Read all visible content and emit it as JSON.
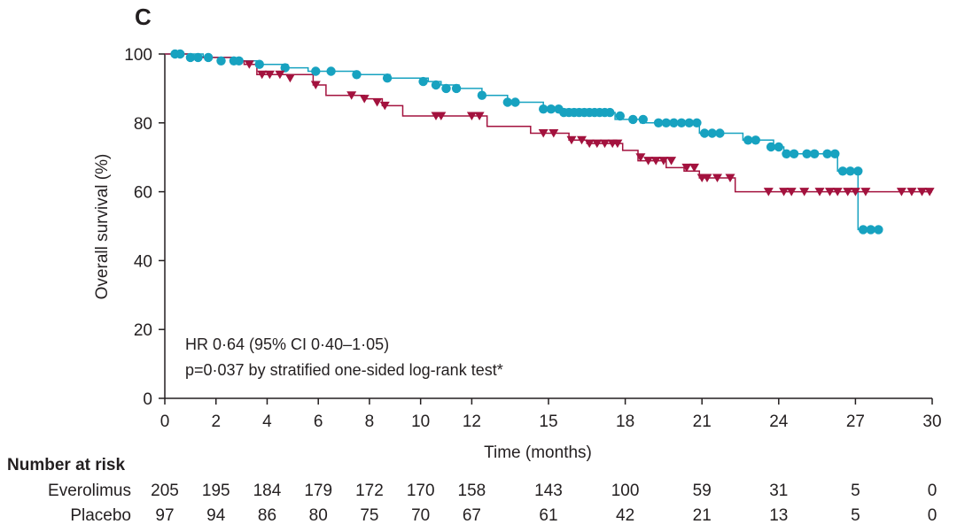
{
  "chart_data": {
    "type": "line",
    "panel_label": "C",
    "xlabel": "Time (months)",
    "ylabel": "Overall survival (%)",
    "xlim": [
      0,
      30
    ],
    "ylim": [
      0,
      100
    ],
    "x_ticks": [
      0,
      2,
      4,
      6,
      8,
      10,
      12,
      15,
      18,
      21,
      24,
      27,
      30
    ],
    "y_ticks": [
      0,
      20,
      40,
      60,
      80,
      100
    ],
    "annotations": [
      "HR 0·64 (95% CI 0·40–1·05)",
      "p=0·037 by stratified one-sided log-rank test*"
    ],
    "series": [
      {
        "name": "Everolimus",
        "color": "#17a2c0",
        "marker": "circle",
        "steps": [
          [
            0,
            100
          ],
          [
            1.5,
            99
          ],
          [
            2.6,
            98
          ],
          [
            3.6,
            97
          ],
          [
            4.8,
            96
          ],
          [
            5.6,
            95
          ],
          [
            7.5,
            94
          ],
          [
            8.8,
            93
          ],
          [
            10.3,
            92
          ],
          [
            10.8,
            91
          ],
          [
            11.5,
            90
          ],
          [
            12.4,
            88
          ],
          [
            13.4,
            86
          ],
          [
            14.8,
            84
          ],
          [
            16.6,
            83
          ],
          [
            17.6,
            81
          ],
          [
            18.6,
            80
          ],
          [
            20.9,
            77
          ],
          [
            22.6,
            75
          ],
          [
            23.8,
            73
          ],
          [
            24.2,
            71
          ],
          [
            25.8,
            71
          ],
          [
            26.3,
            66
          ],
          [
            27.1,
            49
          ],
          [
            27.8,
            49
          ]
        ],
        "censored": [
          [
            0.4,
            100
          ],
          [
            0.6,
            100
          ],
          [
            1.0,
            99
          ],
          [
            1.3,
            99
          ],
          [
            1.7,
            99
          ],
          [
            2.2,
            98
          ],
          [
            2.7,
            98
          ],
          [
            2.9,
            98
          ],
          [
            3.7,
            97
          ],
          [
            4.7,
            96
          ],
          [
            5.9,
            95
          ],
          [
            6.5,
            95
          ],
          [
            7.5,
            94
          ],
          [
            8.7,
            93
          ],
          [
            10.1,
            92
          ],
          [
            10.6,
            91
          ],
          [
            11.0,
            90
          ],
          [
            11.4,
            90
          ],
          [
            12.4,
            88
          ],
          [
            13.4,
            86
          ],
          [
            13.7,
            86
          ],
          [
            14.8,
            84
          ],
          [
            15.1,
            84
          ],
          [
            15.4,
            84
          ],
          [
            15.6,
            83
          ],
          [
            15.8,
            83
          ],
          [
            16.0,
            83
          ],
          [
            16.2,
            83
          ],
          [
            16.4,
            83
          ],
          [
            16.6,
            83
          ],
          [
            16.8,
            83
          ],
          [
            17.0,
            83
          ],
          [
            17.2,
            83
          ],
          [
            17.4,
            83
          ],
          [
            17.8,
            82
          ],
          [
            18.3,
            81
          ],
          [
            18.7,
            81
          ],
          [
            19.3,
            80
          ],
          [
            19.6,
            80
          ],
          [
            19.9,
            80
          ],
          [
            20.2,
            80
          ],
          [
            20.5,
            80
          ],
          [
            20.8,
            80
          ],
          [
            21.1,
            77
          ],
          [
            21.4,
            77
          ],
          [
            21.7,
            77
          ],
          [
            22.8,
            75
          ],
          [
            23.1,
            75
          ],
          [
            23.7,
            73
          ],
          [
            24.0,
            73
          ],
          [
            24.3,
            71
          ],
          [
            24.6,
            71
          ],
          [
            25.1,
            71
          ],
          [
            25.4,
            71
          ],
          [
            25.9,
            71
          ],
          [
            26.2,
            71
          ],
          [
            26.5,
            66
          ],
          [
            26.8,
            66
          ],
          [
            27.1,
            66
          ],
          [
            27.3,
            49
          ],
          [
            27.6,
            49
          ],
          [
            27.9,
            49
          ]
        ]
      },
      {
        "name": "Placebo",
        "color": "#a3123e",
        "marker": "triangle-down",
        "steps": [
          [
            0,
            100
          ],
          [
            1.0,
            99
          ],
          [
            2.6,
            98
          ],
          [
            3.1,
            97
          ],
          [
            3.6,
            94
          ],
          [
            4.5,
            94
          ],
          [
            5.8,
            91
          ],
          [
            6.3,
            88
          ],
          [
            7.8,
            87
          ],
          [
            8.5,
            85
          ],
          [
            9.3,
            82
          ],
          [
            12.6,
            79
          ],
          [
            14.3,
            77
          ],
          [
            15.8,
            75
          ],
          [
            16.5,
            74
          ],
          [
            17.9,
            72
          ],
          [
            18.5,
            69
          ],
          [
            19.6,
            67
          ],
          [
            20.3,
            66
          ],
          [
            20.9,
            64
          ],
          [
            22.3,
            60
          ],
          [
            30,
            60
          ]
        ],
        "censored": [
          [
            3.3,
            97
          ],
          [
            3.8,
            94
          ],
          [
            4.1,
            94
          ],
          [
            4.5,
            94
          ],
          [
            4.9,
            93
          ],
          [
            5.9,
            91
          ],
          [
            7.3,
            88
          ],
          [
            7.8,
            87
          ],
          [
            8.3,
            86
          ],
          [
            8.6,
            85
          ],
          [
            10.6,
            82
          ],
          [
            10.8,
            82
          ],
          [
            12.0,
            82
          ],
          [
            12.3,
            82
          ],
          [
            14.8,
            77
          ],
          [
            15.2,
            77
          ],
          [
            15.9,
            75
          ],
          [
            16.3,
            75
          ],
          [
            16.6,
            74
          ],
          [
            16.9,
            74
          ],
          [
            17.2,
            74
          ],
          [
            17.5,
            74
          ],
          [
            17.7,
            74
          ],
          [
            18.6,
            70
          ],
          [
            18.9,
            69
          ],
          [
            19.2,
            69
          ],
          [
            19.5,
            69
          ],
          [
            19.8,
            69
          ],
          [
            20.4,
            67
          ],
          [
            20.7,
            67
          ],
          [
            21.0,
            64
          ],
          [
            21.2,
            64
          ],
          [
            21.6,
            64
          ],
          [
            22.1,
            64
          ],
          [
            23.6,
            60
          ],
          [
            24.2,
            60
          ],
          [
            24.5,
            60
          ],
          [
            25.0,
            60
          ],
          [
            25.6,
            60
          ],
          [
            26.0,
            60
          ],
          [
            26.3,
            60
          ],
          [
            26.7,
            60
          ],
          [
            27.0,
            60
          ],
          [
            27.4,
            60
          ],
          [
            28.8,
            60
          ],
          [
            29.2,
            60
          ],
          [
            29.6,
            60
          ],
          [
            29.9,
            60
          ]
        ]
      }
    ],
    "number_at_risk": {
      "heading": "Number at risk",
      "rows": [
        {
          "name": "Everolimus",
          "values": [
            "205",
            "195",
            "184",
            "179",
            "172",
            "170",
            "158",
            "143",
            "100",
            "59",
            "31",
            "5",
            "0"
          ]
        },
        {
          "name": "Placebo",
          "values": [
            "97",
            "94",
            "86",
            "80",
            "75",
            "70",
            "67",
            "61",
            "42",
            "21",
            "13",
            "5",
            "0"
          ]
        }
      ]
    }
  }
}
